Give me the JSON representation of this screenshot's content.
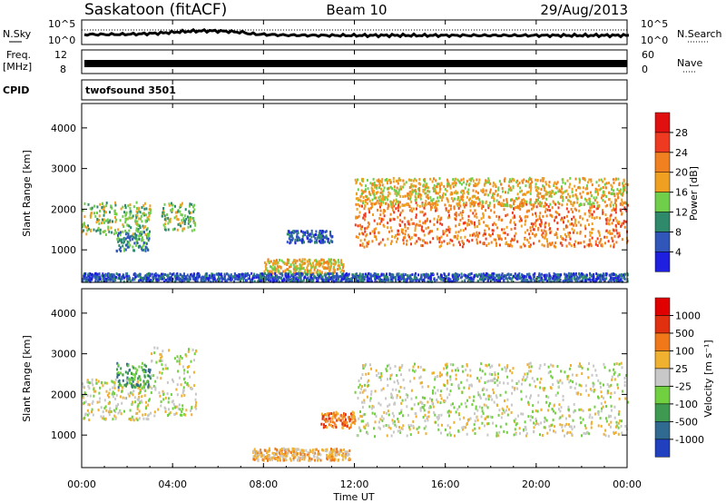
{
  "header": {
    "station": "Saskatoon (fitACF)",
    "beam": "Beam 10",
    "date": "29/Aug/2013"
  },
  "time_axis": {
    "ticks": [
      "00:00",
      "04:00",
      "08:00",
      "12:00",
      "16:00",
      "20:00",
      "00:00"
    ],
    "label": "Time UT",
    "range_hours": [
      0,
      24
    ]
  },
  "noise_panel": {
    "left_label": "N.Sky",
    "right_label": "N.Search",
    "left_ticks": [
      "10^5",
      "10^0"
    ],
    "right_ticks": [
      "10^5",
      "10^0"
    ]
  },
  "freq_panel": {
    "left_label_1": "Freq.",
    "left_label_2": "[MHz]",
    "right_label": "Nave",
    "left_ticks": [
      "12",
      "8"
    ],
    "right_ticks": [
      "60",
      "0"
    ]
  },
  "cpid_panel": {
    "label": "CPID",
    "text": "twofsound 3501"
  },
  "chart_data": [
    {
      "type": "heatmap",
      "panel": "power",
      "ylabel": "Slant Range [km]",
      "y_ticks": [
        "1000",
        "2000",
        "3000",
        "4000"
      ],
      "ylim": [
        200,
        4600
      ],
      "colorbar": {
        "label": "Power [dB]",
        "ticks": [
          "4",
          "8",
          "12",
          "16",
          "20",
          "24",
          "28"
        ],
        "colors": [
          "#1f1fe0",
          "#2f56b8",
          "#2e8a6a",
          "#6fcf4a",
          "#f0a020",
          "#f08020",
          "#ee3a20",
          "#e01010"
        ]
      },
      "regions": [
        {
          "t0": 0.0,
          "t1": 3.0,
          "r0": 1400,
          "r1": 2200,
          "level": 3
        },
        {
          "t0": 1.5,
          "t1": 3.0,
          "r0": 1000,
          "r1": 1500,
          "level": 2
        },
        {
          "t0": 3.5,
          "t1": 5.0,
          "r0": 1500,
          "r1": 2200,
          "level": 3
        },
        {
          "t0": 8.0,
          "t1": 11.5,
          "r0": 450,
          "r1": 800,
          "level": 4
        },
        {
          "t0": 9.0,
          "t1": 11.0,
          "r0": 1200,
          "r1": 1500,
          "level": 1
        },
        {
          "t0": 12.0,
          "t1": 24.0,
          "r0": 1100,
          "r1": 2200,
          "level": 5
        },
        {
          "t0": 12.0,
          "t1": 24.0,
          "r0": 2100,
          "r1": 2800,
          "level": 4
        },
        {
          "t0": 0.0,
          "t1": 24.0,
          "r0": 250,
          "r1": 450,
          "level": 1
        }
      ]
    },
    {
      "type": "heatmap",
      "panel": "velocity",
      "ylabel": "Slant Range [km]",
      "y_ticks": [
        "1000",
        "2000",
        "3000",
        "4000"
      ],
      "ylim": [
        200,
        4600
      ],
      "colorbar": {
        "label": "Velocity [m s⁻¹]",
        "ticks": [
          "1000",
          "500",
          "100",
          "25",
          "-25",
          "-100",
          "-500",
          "-1000"
        ],
        "colors": [
          "#2040c0",
          "#306a90",
          "#3e9a50",
          "#70d040",
          "#c8c8c8",
          "#f0b030",
          "#f07818",
          "#e03010",
          "#e00000"
        ]
      },
      "regions": [
        {
          "t0": 0.0,
          "t1": 3.0,
          "r0": 1400,
          "r1": 2400,
          "level": 4
        },
        {
          "t0": 1.5,
          "t1": 3.0,
          "r0": 2200,
          "r1": 2800,
          "level": 2
        },
        {
          "t0": 3.0,
          "t1": 5.0,
          "r0": 1500,
          "r1": 3200,
          "level": 4
        },
        {
          "t0": 7.5,
          "t1": 11.8,
          "r0": 400,
          "r1": 700,
          "level": 5
        },
        {
          "t0": 10.5,
          "t1": 12.0,
          "r0": 1200,
          "r1": 1600,
          "level": 6
        },
        {
          "t0": 12.0,
          "t1": 24.0,
          "r0": 1000,
          "r1": 2800,
          "level": 4
        }
      ]
    }
  ]
}
